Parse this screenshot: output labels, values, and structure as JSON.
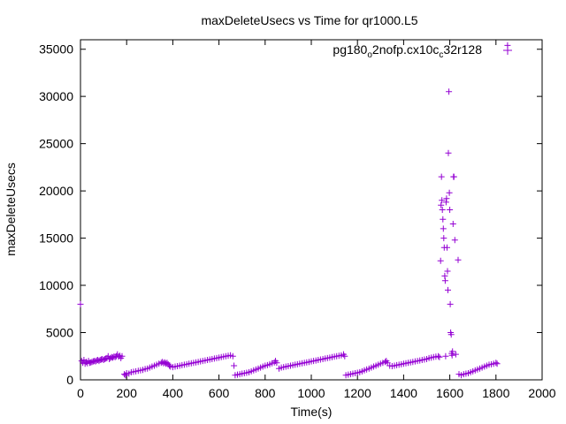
{
  "chart_data": {
    "type": "scatter",
    "title": "maxDeleteUsecs vs Time for qr1000.L5",
    "xlabel": "Time(s)",
    "ylabel": "maxDeleteUsecs",
    "xlim": [
      0,
      2000
    ],
    "ylim": [
      0,
      36000
    ],
    "x_ticks": [
      "0",
      "200",
      "400",
      "600",
      "800",
      "1000",
      "1200",
      "1400",
      "1600",
      "1800",
      "2000"
    ],
    "y_ticks": [
      "0",
      "5000",
      "10000",
      "15000",
      "20000",
      "25000",
      "30000",
      "35000"
    ],
    "grid": false,
    "legend_position": "top-right",
    "marker": "plus",
    "color": "#9400d3",
    "series": [
      {
        "name": "pg180_o2nofp.cx10c_c32r128",
        "legend_parts": {
          "pre": "pg180",
          "sub1": "o",
          "mid": "2nofp.cx10c",
          "sub2": "c",
          "post": "32r128"
        },
        "points": [
          [
            0,
            8000
          ],
          [
            5,
            2000
          ],
          [
            10,
            1800
          ],
          [
            15,
            2100
          ],
          [
            20,
            1700
          ],
          [
            25,
            1900
          ],
          [
            30,
            1750
          ],
          [
            35,
            2000
          ],
          [
            40,
            1800
          ],
          [
            45,
            1850
          ],
          [
            50,
            1900
          ],
          [
            55,
            1950
          ],
          [
            60,
            2000
          ],
          [
            65,
            1950
          ],
          [
            70,
            2050
          ],
          [
            75,
            2100
          ],
          [
            80,
            2000
          ],
          [
            85,
            2100
          ],
          [
            90,
            2150
          ],
          [
            95,
            2200
          ],
          [
            100,
            2100
          ],
          [
            105,
            2200
          ],
          [
            110,
            2250
          ],
          [
            115,
            2300
          ],
          [
            120,
            2500
          ],
          [
            125,
            2200
          ],
          [
            130,
            2300
          ],
          [
            135,
            2400
          ],
          [
            140,
            2350
          ],
          [
            145,
            2450
          ],
          [
            150,
            2400
          ],
          [
            155,
            2500
          ],
          [
            160,
            2700
          ],
          [
            165,
            2450
          ],
          [
            170,
            2550
          ],
          [
            175,
            2300
          ],
          [
            180,
            2500
          ],
          [
            190,
            600
          ],
          [
            195,
            500
          ],
          [
            200,
            700
          ],
          [
            210,
            650
          ],
          [
            220,
            800
          ],
          [
            230,
            850
          ],
          [
            240,
            900
          ],
          [
            250,
            950
          ],
          [
            260,
            1000
          ],
          [
            270,
            1050
          ],
          [
            280,
            1150
          ],
          [
            290,
            1200
          ],
          [
            300,
            1300
          ],
          [
            310,
            1400
          ],
          [
            320,
            1500
          ],
          [
            330,
            1600
          ],
          [
            340,
            1700
          ],
          [
            350,
            1800
          ],
          [
            355,
            1900
          ],
          [
            360,
            1750
          ],
          [
            365,
            1850
          ],
          [
            370,
            1700
          ],
          [
            375,
            1800
          ],
          [
            380,
            1650
          ],
          [
            385,
            1500
          ],
          [
            390,
            1400
          ],
          [
            400,
            1350
          ],
          [
            410,
            1400
          ],
          [
            420,
            1450
          ],
          [
            430,
            1500
          ],
          [
            440,
            1550
          ],
          [
            450,
            1600
          ],
          [
            460,
            1650
          ],
          [
            470,
            1700
          ],
          [
            480,
            1750
          ],
          [
            490,
            1800
          ],
          [
            500,
            1850
          ],
          [
            510,
            1900
          ],
          [
            520,
            1950
          ],
          [
            530,
            2000
          ],
          [
            540,
            2050
          ],
          [
            550,
            2100
          ],
          [
            560,
            2150
          ],
          [
            570,
            2200
          ],
          [
            580,
            2250
          ],
          [
            590,
            2300
          ],
          [
            600,
            2350
          ],
          [
            610,
            2400
          ],
          [
            620,
            2450
          ],
          [
            630,
            2500
          ],
          [
            640,
            2550
          ],
          [
            650,
            2600
          ],
          [
            660,
            2500
          ],
          [
            665,
            1500
          ],
          [
            670,
            500
          ],
          [
            680,
            550
          ],
          [
            690,
            600
          ],
          [
            700,
            650
          ],
          [
            710,
            700
          ],
          [
            720,
            750
          ],
          [
            730,
            800
          ],
          [
            740,
            900
          ],
          [
            750,
            1000
          ],
          [
            760,
            1100
          ],
          [
            770,
            1200
          ],
          [
            780,
            1300
          ],
          [
            790,
            1400
          ],
          [
            800,
            1500
          ],
          [
            810,
            1550
          ],
          [
            820,
            1650
          ],
          [
            830,
            1750
          ],
          [
            840,
            1850
          ],
          [
            845,
            2000
          ],
          [
            850,
            1800
          ],
          [
            860,
            1200
          ],
          [
            870,
            1300
          ],
          [
            880,
            1350
          ],
          [
            890,
            1400
          ],
          [
            900,
            1450
          ],
          [
            910,
            1500
          ],
          [
            920,
            1550
          ],
          [
            930,
            1600
          ],
          [
            940,
            1650
          ],
          [
            950,
            1700
          ],
          [
            960,
            1750
          ],
          [
            970,
            1800
          ],
          [
            980,
            1850
          ],
          [
            990,
            1900
          ],
          [
            1000,
            1950
          ],
          [
            1010,
            2000
          ],
          [
            1020,
            2050
          ],
          [
            1030,
            2100
          ],
          [
            1040,
            2150
          ],
          [
            1050,
            2200
          ],
          [
            1060,
            2250
          ],
          [
            1070,
            2300
          ],
          [
            1080,
            2350
          ],
          [
            1090,
            2400
          ],
          [
            1100,
            2450
          ],
          [
            1110,
            2500
          ],
          [
            1120,
            2550
          ],
          [
            1130,
            2600
          ],
          [
            1140,
            2700
          ],
          [
            1145,
            2500
          ],
          [
            1150,
            500
          ],
          [
            1160,
            550
          ],
          [
            1170,
            600
          ],
          [
            1180,
            650
          ],
          [
            1190,
            700
          ],
          [
            1200,
            750
          ],
          [
            1210,
            800
          ],
          [
            1220,
            900
          ],
          [
            1230,
            1000
          ],
          [
            1240,
            1100
          ],
          [
            1250,
            1200
          ],
          [
            1260,
            1300
          ],
          [
            1270,
            1400
          ],
          [
            1280,
            1500
          ],
          [
            1290,
            1600
          ],
          [
            1300,
            1700
          ],
          [
            1310,
            1800
          ],
          [
            1320,
            1900
          ],
          [
            1325,
            2000
          ],
          [
            1330,
            1800
          ],
          [
            1340,
            1500
          ],
          [
            1350,
            1450
          ],
          [
            1360,
            1500
          ],
          [
            1370,
            1550
          ],
          [
            1380,
            1600
          ],
          [
            1390,
            1650
          ],
          [
            1400,
            1700
          ],
          [
            1410,
            1750
          ],
          [
            1420,
            1800
          ],
          [
            1430,
            1850
          ],
          [
            1440,
            1900
          ],
          [
            1450,
            1950
          ],
          [
            1460,
            2000
          ],
          [
            1470,
            2050
          ],
          [
            1480,
            2100
          ],
          [
            1490,
            2150
          ],
          [
            1500,
            2200
          ],
          [
            1510,
            2300
          ],
          [
            1520,
            2350
          ],
          [
            1530,
            2400
          ],
          [
            1540,
            2450
          ],
          [
            1550,
            2500
          ],
          [
            1555,
            2400
          ],
          [
            1560,
            12600
          ],
          [
            1562,
            18500
          ],
          [
            1564,
            21500
          ],
          [
            1566,
            19000
          ],
          [
            1568,
            18000
          ],
          [
            1570,
            17000
          ],
          [
            1572,
            16000
          ],
          [
            1574,
            15000
          ],
          [
            1576,
            14000
          ],
          [
            1578,
            11000
          ],
          [
            1580,
            10500
          ],
          [
            1582,
            2500
          ],
          [
            1584,
            18800
          ],
          [
            1586,
            19200
          ],
          [
            1588,
            14000
          ],
          [
            1590,
            11500
          ],
          [
            1592,
            9500
          ],
          [
            1594,
            24000
          ],
          [
            1596,
            30500
          ],
          [
            1598,
            19800
          ],
          [
            1600,
            18000
          ],
          [
            1602,
            8000
          ],
          [
            1604,
            5000
          ],
          [
            1606,
            4800
          ],
          [
            1608,
            2800
          ],
          [
            1610,
            2600
          ],
          [
            1612,
            3000
          ],
          [
            1614,
            16500
          ],
          [
            1616,
            21500
          ],
          [
            1618,
            21500
          ],
          [
            1622,
            14800
          ],
          [
            1626,
            2700
          ],
          [
            1636,
            12700
          ],
          [
            1640,
            600
          ],
          [
            1650,
            500
          ],
          [
            1660,
            600
          ],
          [
            1670,
            650
          ],
          [
            1680,
            700
          ],
          [
            1690,
            800
          ],
          [
            1700,
            900
          ],
          [
            1710,
            1000
          ],
          [
            1720,
            1100
          ],
          [
            1730,
            1200
          ],
          [
            1740,
            1300
          ],
          [
            1750,
            1400
          ],
          [
            1760,
            1500
          ],
          [
            1770,
            1600
          ],
          [
            1780,
            1650
          ],
          [
            1790,
            1700
          ],
          [
            1800,
            1800
          ],
          [
            1805,
            1700
          ],
          [
            1850,
            35400
          ]
        ]
      }
    ]
  }
}
